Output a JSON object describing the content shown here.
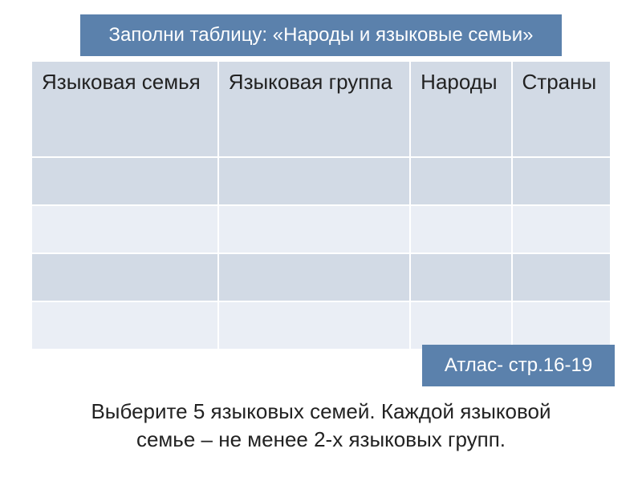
{
  "header": {
    "title": "Заполни таблицу: «Народы и языковые семьи»"
  },
  "table": {
    "columns": [
      "Языковая семья",
      "Языковая группа",
      "Народы",
      "Страны"
    ],
    "rows": [
      [
        "",
        "",
        "",
        ""
      ],
      [
        "",
        "",
        "",
        ""
      ],
      [
        "",
        "",
        "",
        ""
      ],
      [
        "",
        "",
        "",
        ""
      ]
    ],
    "header_bg": "#d2dae5",
    "row_colors": [
      "#d2dae5",
      "#eaeef5",
      "#d2dae5",
      "#eaeef5"
    ],
    "border_color": "#ffffff",
    "header_fontsize": 26,
    "text_color": "#222222"
  },
  "atlas": {
    "label": "Атлас- стр.16-19",
    "bg": "#5b81ac",
    "text_color": "#ffffff"
  },
  "footer": {
    "line1": "Выберите 5 языковых семей. Каждой языковой",
    "line2": "семье – не менее 2-х языковых групп."
  },
  "colors": {
    "header_box_bg": "#5b81ac",
    "header_box_text": "#ffffff",
    "page_bg": "#ffffff"
  }
}
